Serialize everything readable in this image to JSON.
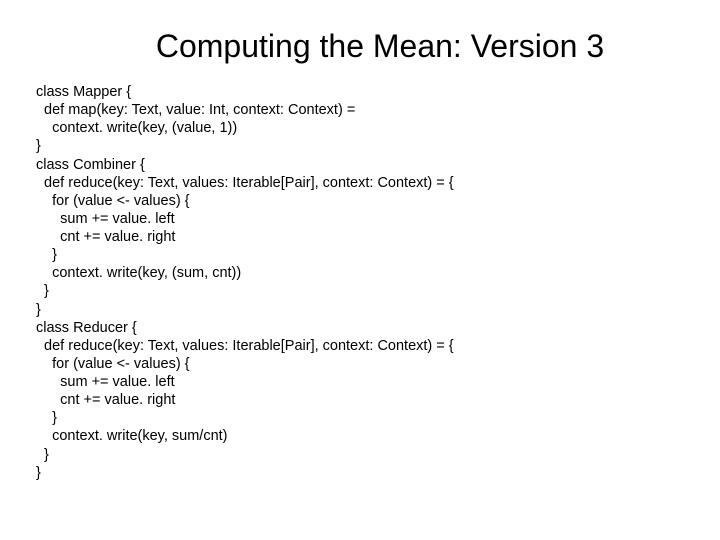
{
  "title": "Computing the Mean: Version 3",
  "code_lines": [
    "class Mapper {",
    "  def map(key: Text, value: Int, context: Context) =",
    "    context. write(key, (value, 1))",
    "}",
    "class Combiner {",
    "  def reduce(key: Text, values: Iterable[Pair], context: Context) = {",
    "    for (value <- values) {",
    "      sum += value. left",
    "      cnt += value. right",
    "    }",
    "    context. write(key, (sum, cnt))",
    "  }",
    "}",
    "class Reducer {",
    "  def reduce(key: Text, values: Iterable[Pair], context: Context) = {",
    "    for (value <- values) {",
    "      sum += value. left",
    "      cnt += value. right",
    "    }",
    "    context. write(key, sum/cnt)",
    "  }",
    "}"
  ],
  "style": {
    "background_color": "#ffffff",
    "title_color": "#000000",
    "title_fontsize": 32,
    "code_color": "#000000",
    "code_fontsize": 14.5,
    "font_family": "Arial"
  }
}
